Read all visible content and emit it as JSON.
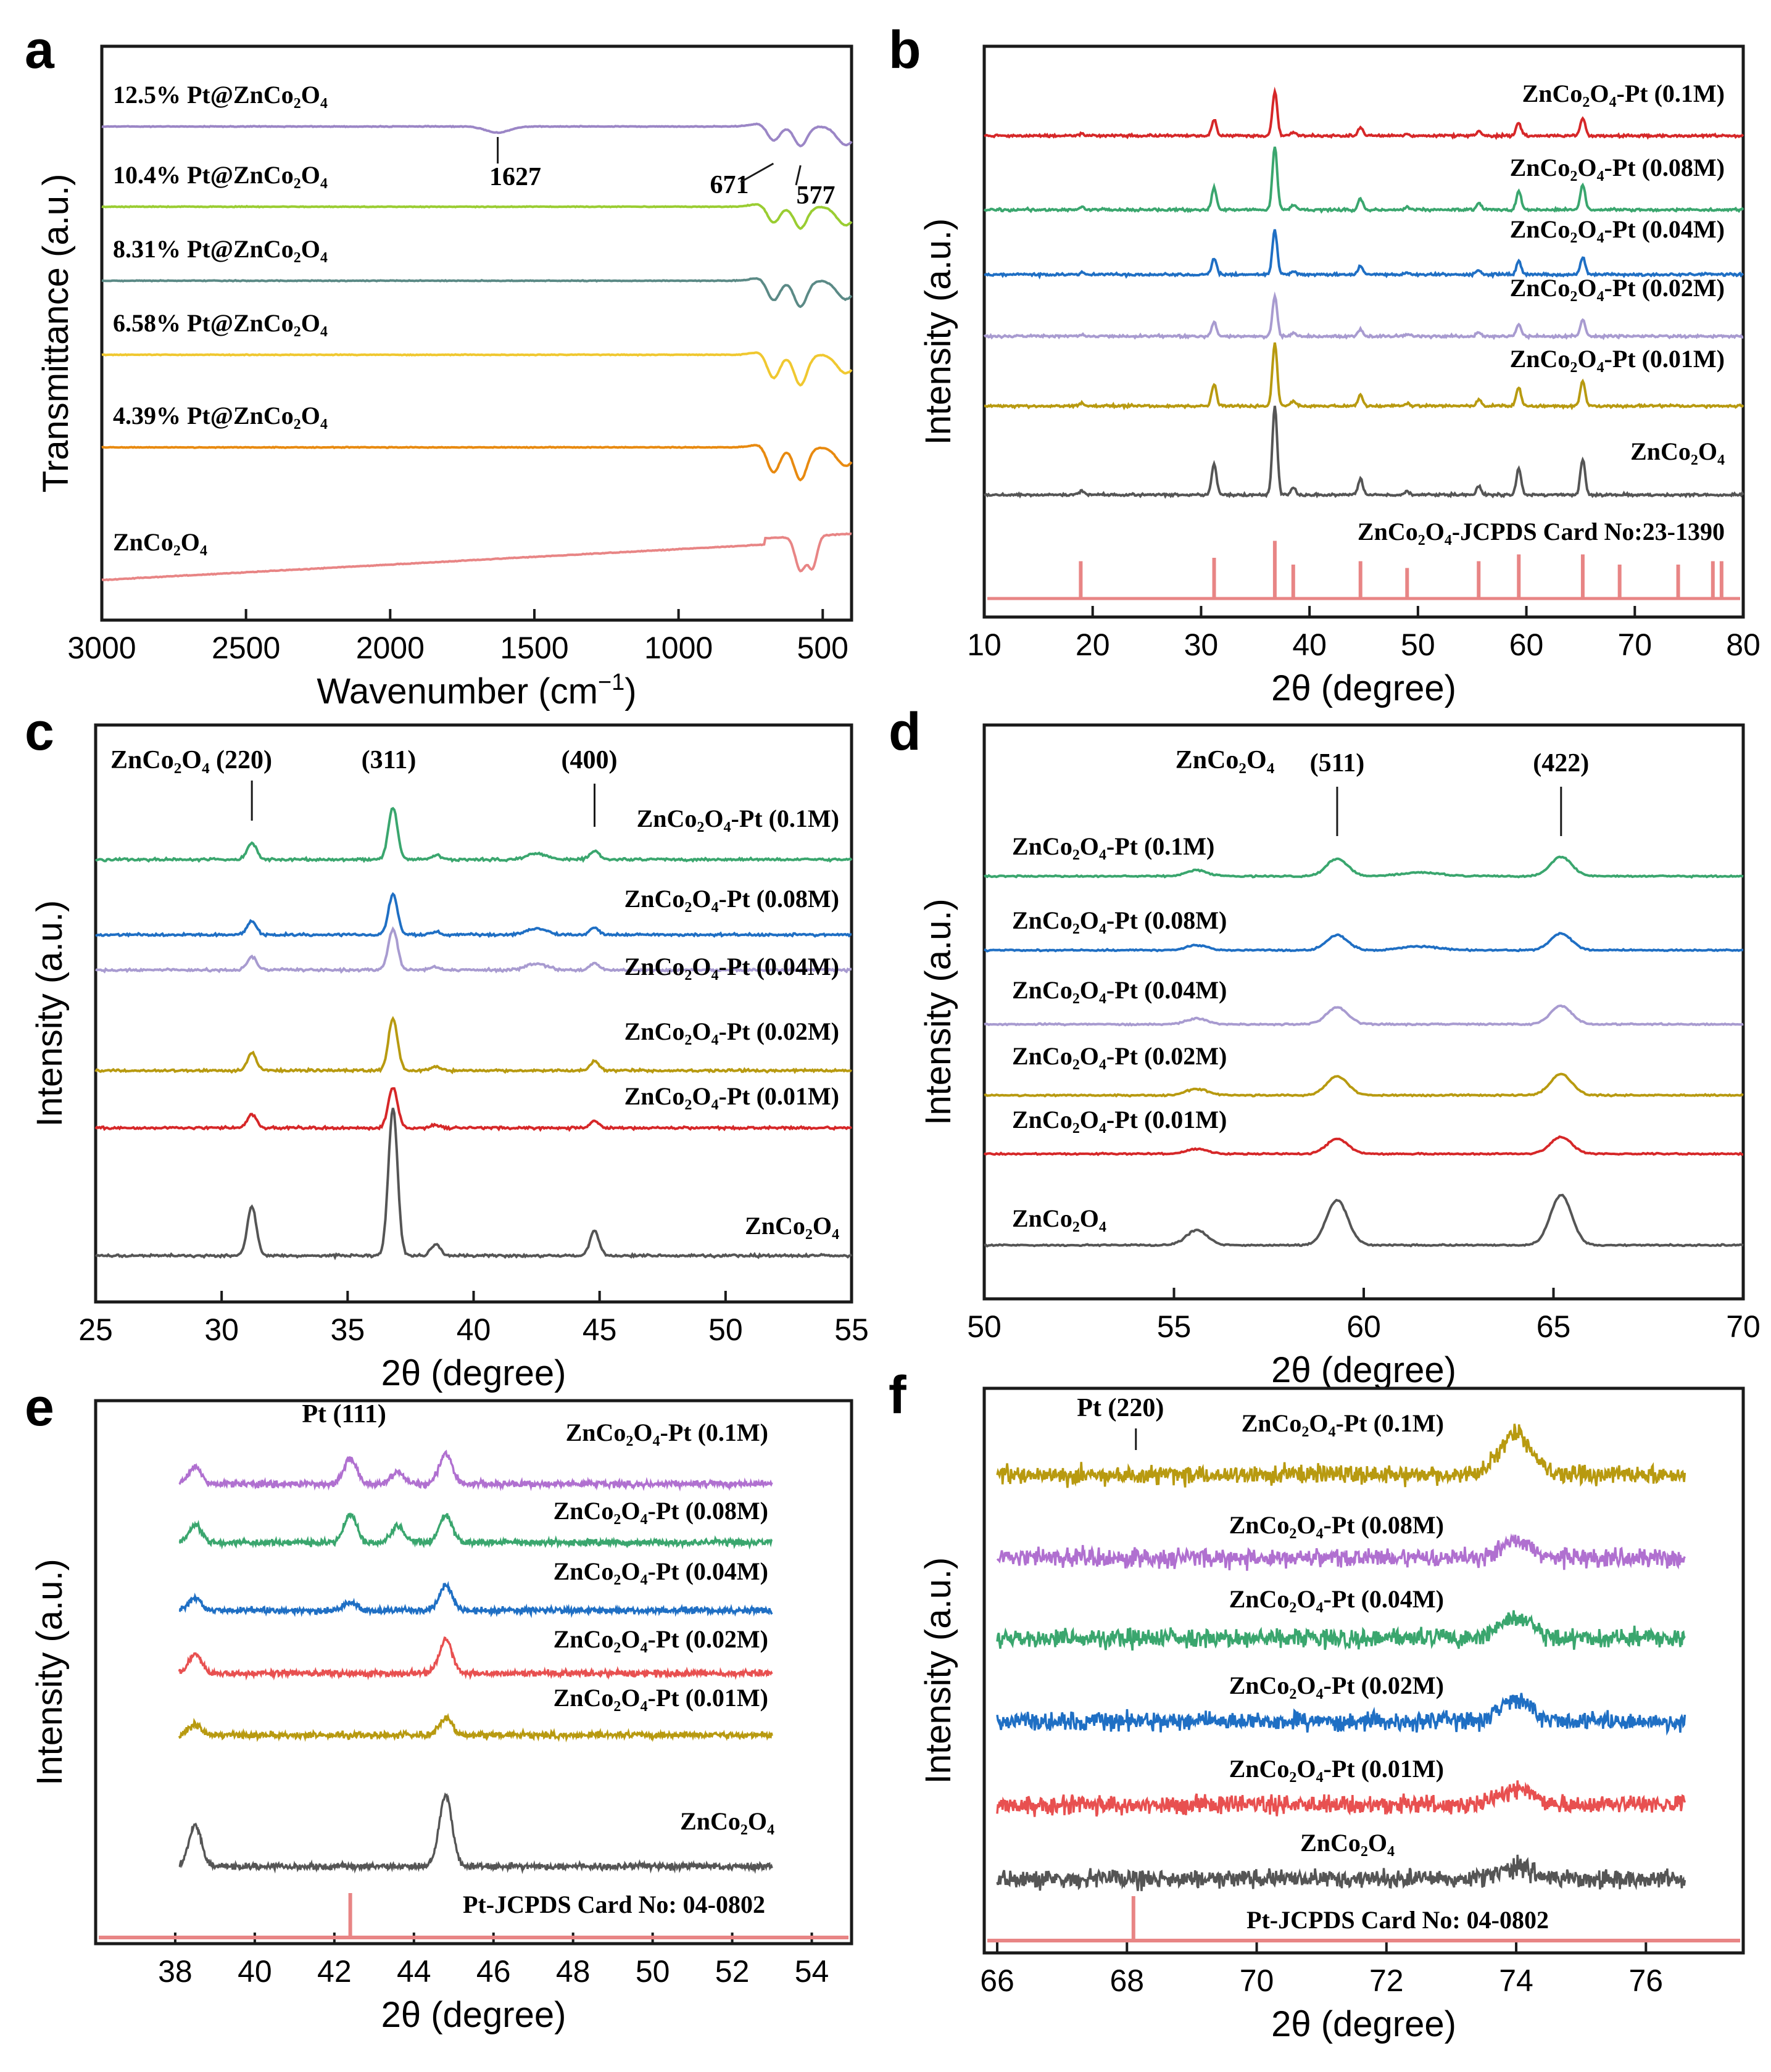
{
  "colors": {
    "axis": "#1a1a1a",
    "red": "#d62728",
    "green": "#3aa66e",
    "blue": "#1f6fc4",
    "lavender": "#a89bd0",
    "olive": "#b89a10",
    "gray": "#555555",
    "salmon": "#e88585",
    "purple": "#9b86c6",
    "teal": "#5b8a86",
    "yellow": "#f0c830",
    "orange": "#e88a10",
    "violet": "#b070d0",
    "coral": "#e85050"
  },
  "chart_data": [
    {
      "id": "a",
      "panel": "a",
      "type": "line",
      "xlabel": "Wavenumber (cm",
      "xlabel_sup": "−1",
      "xlabel_end": ")",
      "ylabel": "Transmittance (a.u.)",
      "xlim": [
        3000,
        400
      ],
      "xticks": [
        "3000",
        "2500",
        "2000",
        "1500",
        "1000",
        "500"
      ],
      "xtick_values": [
        3000,
        2500,
        2000,
        1500,
        1000,
        500
      ],
      "series": [
        {
          "name": "12.5% Pt@ZnCo₂O₄",
          "color": "#9b86c6",
          "offset": 5,
          "dip_depth": 0.45
        },
        {
          "name": "10.4% Pt@ZnCo₂O₄",
          "color": "#9acd32",
          "offset": 4,
          "dip_depth": 0.5
        },
        {
          "name": "8.31% Pt@ZnCo₂O₄",
          "color": "#5b8a86",
          "offset": 3,
          "dip_depth": 0.6
        },
        {
          "name": "6.58% Pt@ZnCo₂O₄",
          "color": "#f0c830",
          "offset": 2,
          "dip_depth": 0.7
        },
        {
          "name": "4.39% Pt@ZnCo₂O₄",
          "color": "#e88a10",
          "offset": 1,
          "dip_depth": 0.75
        },
        {
          "name": "ZnCo₂O₄",
          "color": "#e88585",
          "offset": 0,
          "dip_depth": 0.8
        }
      ],
      "annotations": [
        {
          "text": "1627",
          "x": 1627
        },
        {
          "text": "671",
          "x": 671
        },
        {
          "text": "577",
          "x": 577
        }
      ]
    },
    {
      "id": "b",
      "panel": "b",
      "type": "line",
      "xlabel": "2θ (degree)",
      "ylabel": "Intensity (a.u.)",
      "xlim": [
        10,
        80
      ],
      "xticks": [
        "10",
        "20",
        "30",
        "40",
        "50",
        "60",
        "70",
        "80"
      ],
      "xtick_values": [
        10,
        20,
        30,
        40,
        50,
        60,
        70,
        80
      ],
      "peaks": [
        19.0,
        31.2,
        36.8,
        38.5,
        44.7,
        49.0,
        55.6,
        59.3,
        65.2
      ],
      "peak_heights": [
        0.05,
        0.35,
        1.0,
        0.08,
        0.18,
        0.04,
        0.1,
        0.3,
        0.4
      ],
      "series": [
        {
          "name": "ZnCo₂O₄-Pt (0.1M)",
          "color": "#d62728",
          "scale": 0.6
        },
        {
          "name": "ZnCo₂O₄-Pt (0.08M)",
          "color": "#3aa66e",
          "scale": 0.85
        },
        {
          "name": "ZnCo₂O₄-Pt (0.04M)",
          "color": "#1f6fc4",
          "scale": 0.6
        },
        {
          "name": "ZnCo₂O₄-Pt (0.02M)",
          "color": "#a89bd0",
          "scale": 0.55
        },
        {
          "name": "ZnCo₂O₄-Pt (0.01M)",
          "color": "#b89a10",
          "scale": 0.85
        },
        {
          "name": "ZnCo₂O₄",
          "color": "#555555",
          "scale": 1.2
        }
      ],
      "reference": {
        "label": "ZnCo₂O₄-JCPDS Card No:23-1390",
        "positions": [
          18.9,
          31.2,
          36.8,
          38.5,
          44.7,
          49.0,
          55.6,
          59.3,
          65.2,
          68.6,
          74.0,
          77.2,
          78.0
        ],
        "heights": [
          0.55,
          0.6,
          0.85,
          0.5,
          0.55,
          0.45,
          0.55,
          0.65,
          0.65,
          0.5,
          0.5,
          0.55,
          0.55
        ],
        "color": "#e88585"
      }
    },
    {
      "id": "c",
      "panel": "c",
      "type": "line",
      "xlabel": "2θ (degree)",
      "ylabel": "Intensity (a.u.)",
      "xlim": [
        25,
        55
      ],
      "xticks": [
        "25",
        "30",
        "35",
        "40",
        "45",
        "50",
        "55"
      ],
      "xtick_values": [
        25,
        30,
        35,
        40,
        45,
        50,
        55
      ],
      "peaks": [
        31.2,
        36.8,
        38.5,
        44.8
      ],
      "peak_heights": [
        0.33,
        1.0,
        0.08,
        0.17
      ],
      "hkl": [
        {
          "text": "ZnCo₂O₄ (220)",
          "x": 31.2
        },
        {
          "text": "(311)",
          "x": 36.8
        },
        {
          "text": "(400)",
          "x": 44.8
        }
      ],
      "series": [
        {
          "name": "ZnCo₂O₄-Pt (0.1M)",
          "color": "#3aa66e",
          "scale": 0.42
        },
        {
          "name": "ZnCo₂O₄-Pt (0.08M)",
          "color": "#1f6fc4",
          "scale": 0.33
        },
        {
          "name": "ZnCo₂O₄-Pt (0.04M)",
          "color": "#a89bd0",
          "scale": 0.33
        },
        {
          "name": "ZnCo₂O₄-Pt (0.02M)",
          "color": "#b89a10",
          "scale": 0.42
        },
        {
          "name": "ZnCo₂O₄-Pt (0.01M)",
          "color": "#d62728",
          "scale": 0.33
        },
        {
          "name": "ZnCo₂O₄",
          "color": "#555555",
          "scale": 1.2
        }
      ]
    },
    {
      "id": "d",
      "panel": "d",
      "type": "line",
      "xlabel": "2θ (degree)",
      "ylabel": "Intensity (a.u.)",
      "xlim": [
        50,
        70
      ],
      "xticks": [
        "50",
        "55",
        "60",
        "65",
        "70"
      ],
      "xtick_values": [
        50,
        55,
        60,
        65,
        70
      ],
      "peaks": [
        55.6,
        59.3,
        65.2
      ],
      "peak_heights": [
        0.3,
        0.9,
        1.0
      ],
      "hkl_prefix": "ZnCo₂O₄",
      "hkl": [
        {
          "text": "(511)",
          "x": 59.3
        },
        {
          "text": "(422)",
          "x": 65.2
        }
      ],
      "series": [
        {
          "name": "ZnCo₂O₄-Pt (0.1M)",
          "color": "#3aa66e",
          "scale": 0.35
        },
        {
          "name": "ZnCo₂O₄-Pt (0.08M)",
          "color": "#1f6fc4",
          "scale": 0.3
        },
        {
          "name": "ZnCo₂O₄-Pt (0.04M)",
          "color": "#a89bd0",
          "scale": 0.33
        },
        {
          "name": "ZnCo₂O₄-Pt (0.02M)",
          "color": "#b89a10",
          "scale": 0.38
        },
        {
          "name": "ZnCo₂O₄-Pt (0.01M)",
          "color": "#d62728",
          "scale": 0.3
        },
        {
          "name": "ZnCo₂O₄",
          "color": "#555555",
          "scale": 0.9
        }
      ]
    },
    {
      "id": "e",
      "panel": "e",
      "type": "line",
      "xlabel": "2θ (degree)",
      "ylabel": "Intensity (a.u.)",
      "xlim": [
        36,
        55
      ],
      "xticks": [
        "38",
        "40",
        "42",
        "44",
        "46",
        "48",
        "50",
        "52",
        "54"
      ],
      "xtick_values": [
        38,
        40,
        42,
        44,
        46,
        48,
        50,
        52,
        54
      ],
      "data_range": [
        38.1,
        53.0
      ],
      "peak_label": {
        "text": "Pt (111)",
        "x": 42.4
      },
      "series": [
        {
          "name": "ZnCo₂O₄-Pt (0.1M)",
          "color": "#b070d0",
          "peaks": [
            38.5,
            42.4,
            43.6,
            44.8
          ],
          "heights": [
            0.5,
            0.75,
            0.35,
            0.9
          ]
        },
        {
          "name": "ZnCo₂O₄-Pt (0.08M)",
          "color": "#3aa66e",
          "peaks": [
            38.5,
            42.4,
            43.6,
            44.8
          ],
          "heights": [
            0.5,
            0.8,
            0.5,
            0.8
          ]
        },
        {
          "name": "ZnCo₂O₄-Pt (0.04M)",
          "color": "#1f6fc4",
          "peaks": [
            38.5,
            42.4,
            44.8
          ],
          "heights": [
            0.35,
            0.25,
            0.75
          ]
        },
        {
          "name": "ZnCo₂O₄-Pt (0.02M)",
          "color": "#e85050",
          "peaks": [
            38.5,
            44.8
          ],
          "heights": [
            0.55,
            1.0
          ]
        },
        {
          "name": "ZnCo₂O₄-Pt (0.01M)",
          "color": "#b89a10",
          "peaks": [
            38.5,
            44.8
          ],
          "heights": [
            0.3,
            0.5
          ]
        },
        {
          "name": "ZnCo₂O₄",
          "color": "#555555",
          "peaks": [
            38.5,
            44.8
          ],
          "heights": [
            1.2,
            2.1
          ]
        }
      ],
      "reference": {
        "label": "Pt-JCPDS Card No: 04-0802",
        "positions": [
          42.4
        ],
        "color": "#e88585"
      }
    },
    {
      "id": "f",
      "panel": "f",
      "type": "line",
      "xlabel": "2θ (degree)",
      "ylabel": "Intensity (a.u.)",
      "xlim": [
        65.8,
        77.5
      ],
      "xticks": [
        "66",
        "68",
        "70",
        "72",
        "74",
        "76"
      ],
      "xtick_values": [
        66,
        68,
        70,
        72,
        74,
        76
      ],
      "data_range": [
        66.0,
        76.6
      ],
      "peak_label": {
        "text": "Pt (220)",
        "x": 67.9
      },
      "series": [
        {
          "name": "ZnCo₂O₄-Pt (0.1M)",
          "color": "#b89a10",
          "peaks": [
            74.0
          ],
          "heights": [
            1.0
          ]
        },
        {
          "name": "ZnCo₂O₄-Pt (0.08M)",
          "color": "#b070d0",
          "peaks": [
            74.0
          ],
          "heights": [
            0.4
          ]
        },
        {
          "name": "ZnCo₂O₄-Pt (0.04M)",
          "color": "#3aa66e",
          "peaks": [
            74.0
          ],
          "heights": [
            0.5
          ]
        },
        {
          "name": "ZnCo₂O₄-Pt (0.02M)",
          "color": "#1f6fc4",
          "peaks": [
            74.0
          ],
          "heights": [
            0.5
          ]
        },
        {
          "name": "ZnCo₂O₄-Pt (0.01M)",
          "color": "#e85050",
          "peaks": [
            74.0
          ],
          "heights": [
            0.4
          ]
        },
        {
          "name": "ZnCo₂O₄",
          "color": "#555555",
          "peaks": [
            74.0
          ],
          "heights": [
            0.3
          ]
        }
      ],
      "reference": {
        "label": "Pt-JCPDS Card No: 04-0802",
        "positions": [
          68.1
        ],
        "color": "#e88585"
      }
    }
  ]
}
